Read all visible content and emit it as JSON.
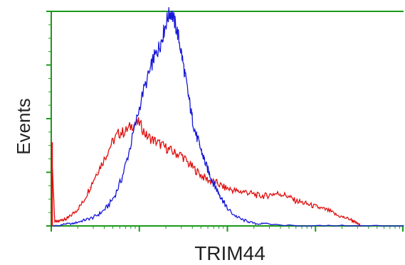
{
  "chart_data": {
    "type": "line",
    "xlabel": "TRIM44",
    "ylabel": "Events",
    "x_scale": "log",
    "xlim": [
      0,
      1
    ],
    "ylim": [
      0,
      1
    ],
    "grid": false,
    "axis_color": "#1a9a1a",
    "x_tick_labels": [],
    "y_tick_labels": [],
    "series": [
      {
        "color": "#e01010",
        "x": [
          0.0,
          0.01,
          0.02,
          0.03,
          0.04,
          0.05,
          0.07,
          0.09,
          0.11,
          0.13,
          0.15,
          0.17,
          0.19,
          0.21,
          0.23,
          0.25,
          0.27,
          0.29,
          0.31,
          0.33,
          0.35,
          0.37,
          0.39,
          0.41,
          0.43,
          0.45,
          0.47,
          0.49,
          0.51,
          0.53,
          0.55,
          0.57,
          0.59,
          0.61,
          0.63,
          0.65,
          0.67,
          0.69,
          0.71,
          0.73,
          0.75,
          0.77,
          0.79,
          0.81,
          0.83,
          0.85,
          0.86,
          0.87,
          0.88
        ],
        "y": [
          0.39,
          0.02,
          0.02,
          0.03,
          0.03,
          0.04,
          0.07,
          0.11,
          0.18,
          0.25,
          0.31,
          0.38,
          0.43,
          0.44,
          0.47,
          0.48,
          0.42,
          0.4,
          0.38,
          0.36,
          0.34,
          0.33,
          0.29,
          0.26,
          0.23,
          0.21,
          0.2,
          0.18,
          0.17,
          0.16,
          0.16,
          0.15,
          0.14,
          0.14,
          0.15,
          0.15,
          0.14,
          0.12,
          0.11,
          0.1,
          0.09,
          0.08,
          0.07,
          0.05,
          0.04,
          0.03,
          0.02,
          0.01,
          0.0
        ]
      },
      {
        "color": "#1818d8",
        "x": [
          0.0,
          0.02,
          0.04,
          0.06,
          0.08,
          0.1,
          0.12,
          0.14,
          0.16,
          0.18,
          0.2,
          0.22,
          0.24,
          0.26,
          0.28,
          0.29,
          0.3,
          0.31,
          0.32,
          0.33,
          0.34,
          0.35,
          0.36,
          0.37,
          0.38,
          0.39,
          0.4,
          0.41,
          0.42,
          0.43,
          0.44,
          0.45,
          0.46,
          0.47,
          0.48,
          0.49,
          0.5,
          0.52,
          0.54,
          0.56,
          0.58,
          0.6,
          0.7,
          0.8,
          0.9,
          1.0
        ],
        "y": [
          0.0,
          0.0,
          0.01,
          0.01,
          0.02,
          0.03,
          0.04,
          0.06,
          0.09,
          0.14,
          0.22,
          0.34,
          0.48,
          0.62,
          0.72,
          0.78,
          0.81,
          0.85,
          0.91,
          0.97,
          1.0,
          0.95,
          0.89,
          0.8,
          0.7,
          0.6,
          0.5,
          0.43,
          0.38,
          0.33,
          0.28,
          0.24,
          0.2,
          0.17,
          0.14,
          0.11,
          0.08,
          0.05,
          0.03,
          0.02,
          0.01,
          0.01,
          0.0,
          0.0,
          0.0,
          0.0
        ]
      }
    ]
  }
}
